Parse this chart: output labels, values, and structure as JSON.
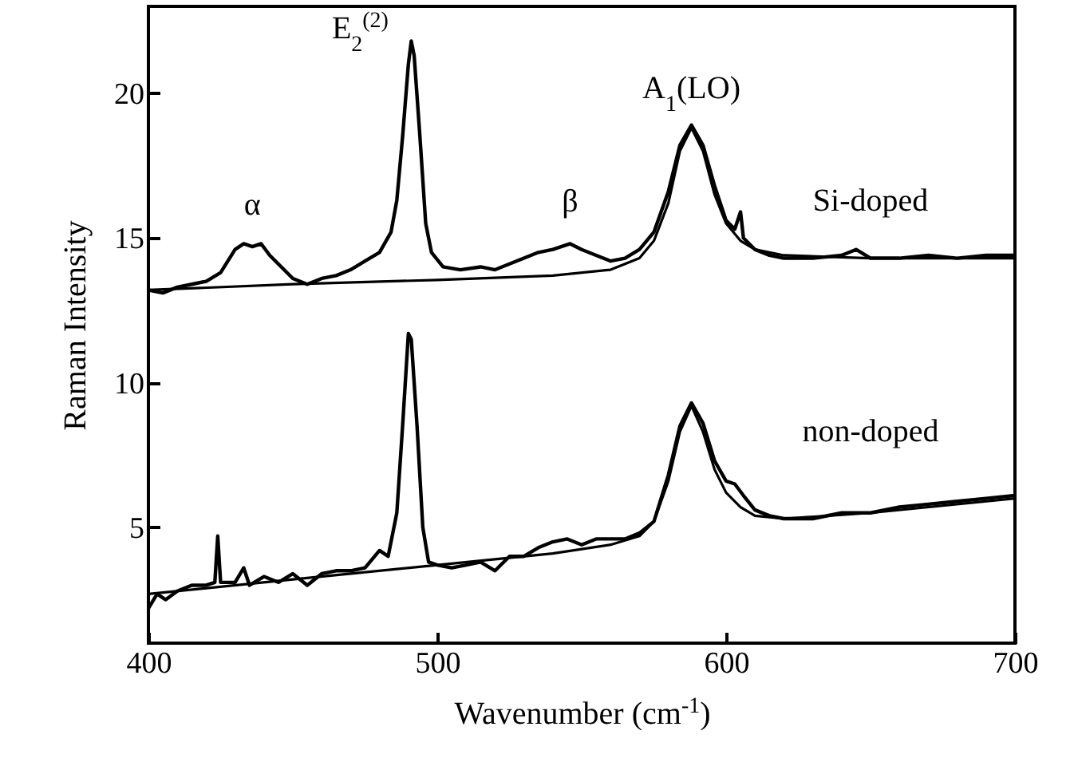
{
  "chart_data": {
    "type": "line",
    "xlabel": "Wavenumber (cm$^{-1}$)",
    "ylabel": "Raman Intensity",
    "xlim": [
      400,
      700
    ],
    "ylim": [
      1,
      23
    ],
    "xticks": [
      400,
      500,
      600,
      700
    ],
    "yticks": [
      5,
      10,
      15,
      20
    ],
    "series": [
      {
        "color": "#000000",
        "x": [
          400,
          405,
          410,
          415,
          420,
          425,
          430,
          433,
          436,
          439,
          442,
          446,
          450,
          455,
          460,
          465,
          470,
          475,
          480,
          484,
          486,
          488,
          490,
          491,
          492,
          494,
          496,
          498,
          502,
          508,
          515,
          520,
          525,
          530,
          535,
          540,
          546,
          550,
          555,
          560,
          565,
          570,
          575,
          580,
          584,
          588,
          592,
          596,
          600,
          603,
          605,
          606,
          610,
          615,
          620,
          630,
          640,
          645,
          650,
          660,
          670,
          680,
          690,
          700
        ],
        "values": [
          13.2,
          13.1,
          13.3,
          13.4,
          13.5,
          13.8,
          14.6,
          14.8,
          14.7,
          14.8,
          14.4,
          14.0,
          13.6,
          13.4,
          13.6,
          13.7,
          13.9,
          14.2,
          14.5,
          15.2,
          16.3,
          18.5,
          21.0,
          21.8,
          21.3,
          18.5,
          15.5,
          14.5,
          14.0,
          13.9,
          14.0,
          13.9,
          14.1,
          14.3,
          14.5,
          14.6,
          14.8,
          14.6,
          14.4,
          14.2,
          14.3,
          14.6,
          15.2,
          16.6,
          18.2,
          18.9,
          18.2,
          16.8,
          15.6,
          15.3,
          15.9,
          15.0,
          14.6,
          14.4,
          14.3,
          14.3,
          14.4,
          14.6,
          14.3,
          14.3,
          14.4,
          14.3,
          14.4,
          14.4
        ]
      },
      {
        "color": "#000000",
        "x": [
          400,
          450,
          500,
          540,
          560,
          570,
          575,
          580,
          584,
          588,
          592,
          596,
          600,
          605,
          610,
          620,
          650,
          700
        ],
        "values": [
          13.2,
          13.4,
          13.55,
          13.7,
          13.9,
          14.3,
          14.9,
          16.2,
          18.0,
          18.8,
          18.0,
          16.5,
          15.5,
          14.9,
          14.6,
          14.4,
          14.3,
          14.3
        ]
      },
      {
        "color": "#000000",
        "x": [
          400,
          403,
          406,
          410,
          415,
          420,
          423,
          424,
          425,
          430,
          433,
          435,
          440,
          445,
          450,
          455,
          460,
          465,
          470,
          475,
          480,
          483,
          486,
          488,
          490,
          491,
          493,
          495,
          497,
          500,
          505,
          510,
          515,
          520,
          525,
          530,
          535,
          540,
          545,
          550,
          555,
          560,
          565,
          570,
          575,
          580,
          584,
          588,
          592,
          596,
          600,
          603,
          606,
          610,
          615,
          620,
          630,
          640,
          650,
          660,
          670,
          680,
          690,
          700
        ],
        "values": [
          2.2,
          2.7,
          2.5,
          2.8,
          3.0,
          3.0,
          3.1,
          4.7,
          3.1,
          3.1,
          3.6,
          3.0,
          3.3,
          3.1,
          3.4,
          3.0,
          3.4,
          3.5,
          3.5,
          3.6,
          4.2,
          4.0,
          5.5,
          8.5,
          11.7,
          11.5,
          8.5,
          5.0,
          3.8,
          3.7,
          3.6,
          3.7,
          3.8,
          3.5,
          4.0,
          4.0,
          4.3,
          4.5,
          4.6,
          4.4,
          4.6,
          4.6,
          4.6,
          4.8,
          5.2,
          6.8,
          8.5,
          9.3,
          8.6,
          7.3,
          6.6,
          6.5,
          6.1,
          5.6,
          5.4,
          5.3,
          5.3,
          5.5,
          5.5,
          5.7,
          5.8,
          5.9,
          6.0,
          6.1
        ]
      },
      {
        "color": "#000000",
        "x": [
          400,
          450,
          500,
          540,
          560,
          570,
          575,
          580,
          584,
          588,
          592,
          596,
          600,
          605,
          610,
          620,
          650,
          700
        ],
        "values": [
          2.7,
          3.2,
          3.7,
          4.1,
          4.4,
          4.7,
          5.2,
          6.6,
          8.3,
          9.2,
          8.3,
          7.0,
          6.2,
          5.7,
          5.4,
          5.3,
          5.5,
          6.0
        ]
      }
    ],
    "annotations": [
      {
        "text": "α",
        "x": 436,
        "y": 14.7
      },
      {
        "text": "E$_{2}$$^{(2)}$",
        "x": 491,
        "y": 21.8
      },
      {
        "text": "β",
        "x": 546,
        "y": 14.8
      },
      {
        "text": "A$_{1}$(LO)",
        "x": 588,
        "y": 18.9
      },
      {
        "text": "Si-doped",
        "x": 650,
        "y": 14.3
      },
      {
        "text": "non-doped",
        "x": 650,
        "y": 5.5
      }
    ]
  }
}
